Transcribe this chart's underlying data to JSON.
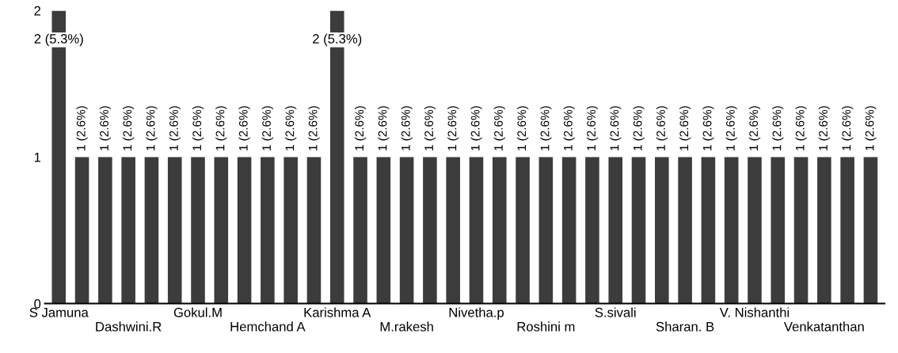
{
  "chart_data": {
    "type": "bar",
    "categories": [
      "S Jamuna",
      null,
      null,
      "Dashwini.R",
      null,
      null,
      "Gokul.M",
      null,
      null,
      "Hemchand A",
      null,
      null,
      "Karishma A",
      null,
      null,
      "M.rakesh",
      null,
      null,
      "Nivetha.p",
      null,
      null,
      "Roshini m",
      null,
      null,
      "S.sivali",
      null,
      null,
      "Sharan. B",
      null,
      null,
      "V. Nishanthi",
      null,
      null,
      "Venkatanthan",
      null,
      null
    ],
    "values": [
      2,
      1,
      1,
      1,
      1,
      1,
      1,
      1,
      1,
      1,
      1,
      1,
      2,
      1,
      1,
      1,
      1,
      1,
      1,
      1,
      1,
      1,
      1,
      1,
      1,
      1,
      1,
      1,
      1,
      1,
      1,
      1,
      1,
      1,
      1,
      1
    ],
    "value_labels": [
      "2 (5.3%)",
      "1 (2.6%)",
      "1 (2.6%)",
      "1 (2.6%)",
      "1 (2.6%)",
      "1 (2.6%)",
      "1 (2.6%)",
      "1 (2.6%)",
      "1 (2.6%)",
      "1 (2.6%)",
      "1 (2.6%)",
      "1 (2.6%)",
      "2 (5.3%)",
      "1 (2.6%)",
      "1 (2.6%)",
      "1 (2.6%)",
      "1 (2.6%)",
      "1 (2.6%)",
      "1 (2.6%)",
      "1 (2.6%)",
      "1 (2.6%)",
      "1 (2.6%)",
      "1 (2.6%)",
      "1 (2.6%)",
      "1 (2.6%)",
      "1 (2.6%)",
      "1 (2.6%)",
      "1 (2.6%)",
      "1 (2.6%)",
      "1 (2.6%)",
      "1 (2.6%)",
      "1 (2.6%)",
      "1 (2.6%)",
      "1 (2.6%)",
      "1 (2.6%)",
      "1 (2.6%)"
    ],
    "color": "#3c3c3c",
    "ylim": [
      0,
      2
    ],
    "yticks": [
      0,
      1,
      2
    ]
  }
}
